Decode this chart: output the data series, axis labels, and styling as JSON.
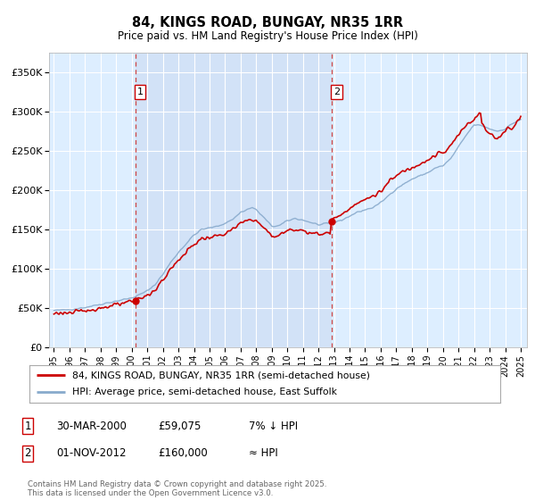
{
  "title": "84, KINGS ROAD, BUNGAY, NR35 1RR",
  "subtitle": "Price paid vs. HM Land Registry's House Price Index (HPI)",
  "background_color": "#ffffff",
  "plot_bg_color": "#ddeeff",
  "grid_color": "#ffffff",
  "sale1_date": 2000.22,
  "sale1_price": 59075,
  "sale2_date": 2012.83,
  "sale2_price": 160000,
  "legend_line1": "84, KINGS ROAD, BUNGAY, NR35 1RR (semi-detached house)",
  "legend_line2": "HPI: Average price, semi-detached house, East Suffolk",
  "footnote1": "Contains HM Land Registry data © Crown copyright and database right 2025.",
  "footnote2": "This data is licensed under the Open Government Licence v3.0.",
  "ylim": [
    0,
    375000
  ],
  "xlim_start": 1994.7,
  "xlim_end": 2025.4,
  "line_color_red": "#cc0000",
  "line_color_blue": "#88aacc",
  "dashed_line_color": "#cc4444"
}
